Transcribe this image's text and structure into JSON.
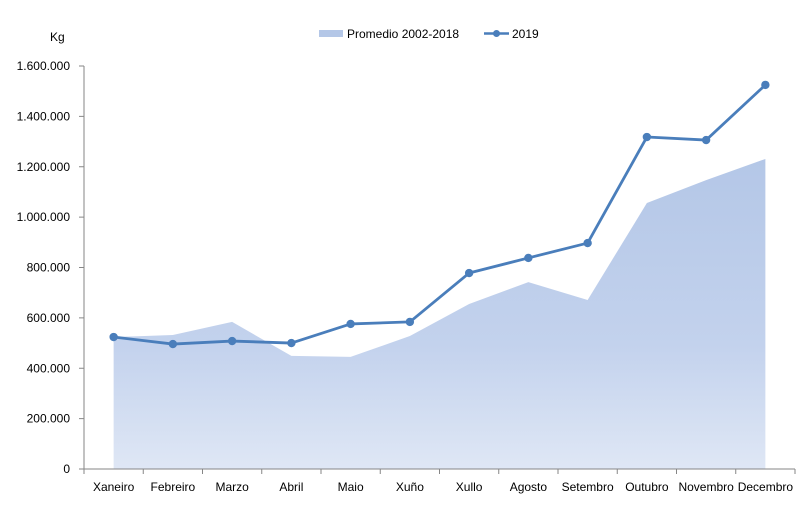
{
  "chart_data": {
    "type": "area+line",
    "title": "",
    "ylabel": "Kg",
    "xlabel": "",
    "ylim": [
      0,
      1600000
    ],
    "yticks": [
      0,
      200000,
      400000,
      600000,
      800000,
      1000000,
      1200000,
      1400000,
      1600000
    ],
    "ytick_labels": [
      "0",
      "200.000",
      "400.000",
      "600.000",
      "800.000",
      "1.000.000",
      "1.200.000",
      "1.400.000",
      "1.600.000"
    ],
    "categories": [
      "Xaneiro",
      "Febreiro",
      "Marzo",
      "Abril",
      "Maio",
      "Xuño",
      "Xullo",
      "Agosto",
      "Setembro",
      "Outubro",
      "Novembro",
      "Decembro"
    ],
    "legend_position": "top",
    "grid": false,
    "series": [
      {
        "name": "Promedio 2002-2018",
        "type": "area",
        "color": "#b4c7e7",
        "values": [
          524000,
          532000,
          584000,
          449000,
          445000,
          528000,
          655000,
          742000,
          671000,
          1056000,
          1147000,
          1231000
        ]
      },
      {
        "name": "2019",
        "type": "line",
        "color": "#4a7ebb",
        "values": [
          524000,
          496000,
          508000,
          500000,
          576000,
          584000,
          778000,
          838000,
          897000,
          1318000,
          1306000,
          1525000
        ]
      }
    ]
  }
}
